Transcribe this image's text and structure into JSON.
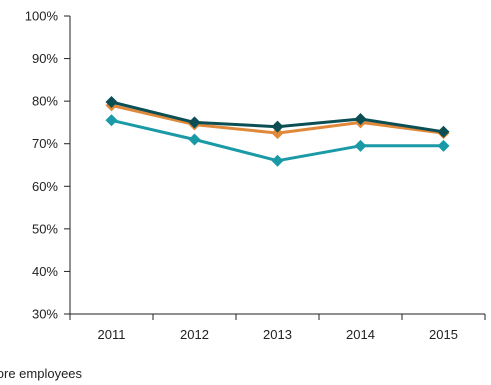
{
  "chart_data": {
    "type": "line",
    "x": [
      "2011",
      "2012",
      "2013",
      "2014",
      "2015"
    ],
    "ylim": [
      30,
      100
    ],
    "yticks": [
      30,
      40,
      50,
      60,
      70,
      80,
      90,
      100
    ],
    "ytick_labels": [
      "30%",
      "40%",
      "50%",
      "60%",
      "70%",
      "80%",
      "90%",
      "100%"
    ],
    "grid": false,
    "series": [
      {
        "color": "#1a9aa6",
        "values": [
          75.5,
          71.0,
          66.0,
          69.5,
          69.5
        ]
      },
      {
        "color": "#e0893a",
        "values": [
          79.0,
          74.5,
          72.5,
          75.0,
          72.5
        ]
      },
      {
        "color": "#0b4f55",
        "values": [
          79.8,
          75.0,
          74.0,
          75.8,
          72.8
        ]
      }
    ]
  },
  "footnote": {
    "text": "r more employees"
  }
}
